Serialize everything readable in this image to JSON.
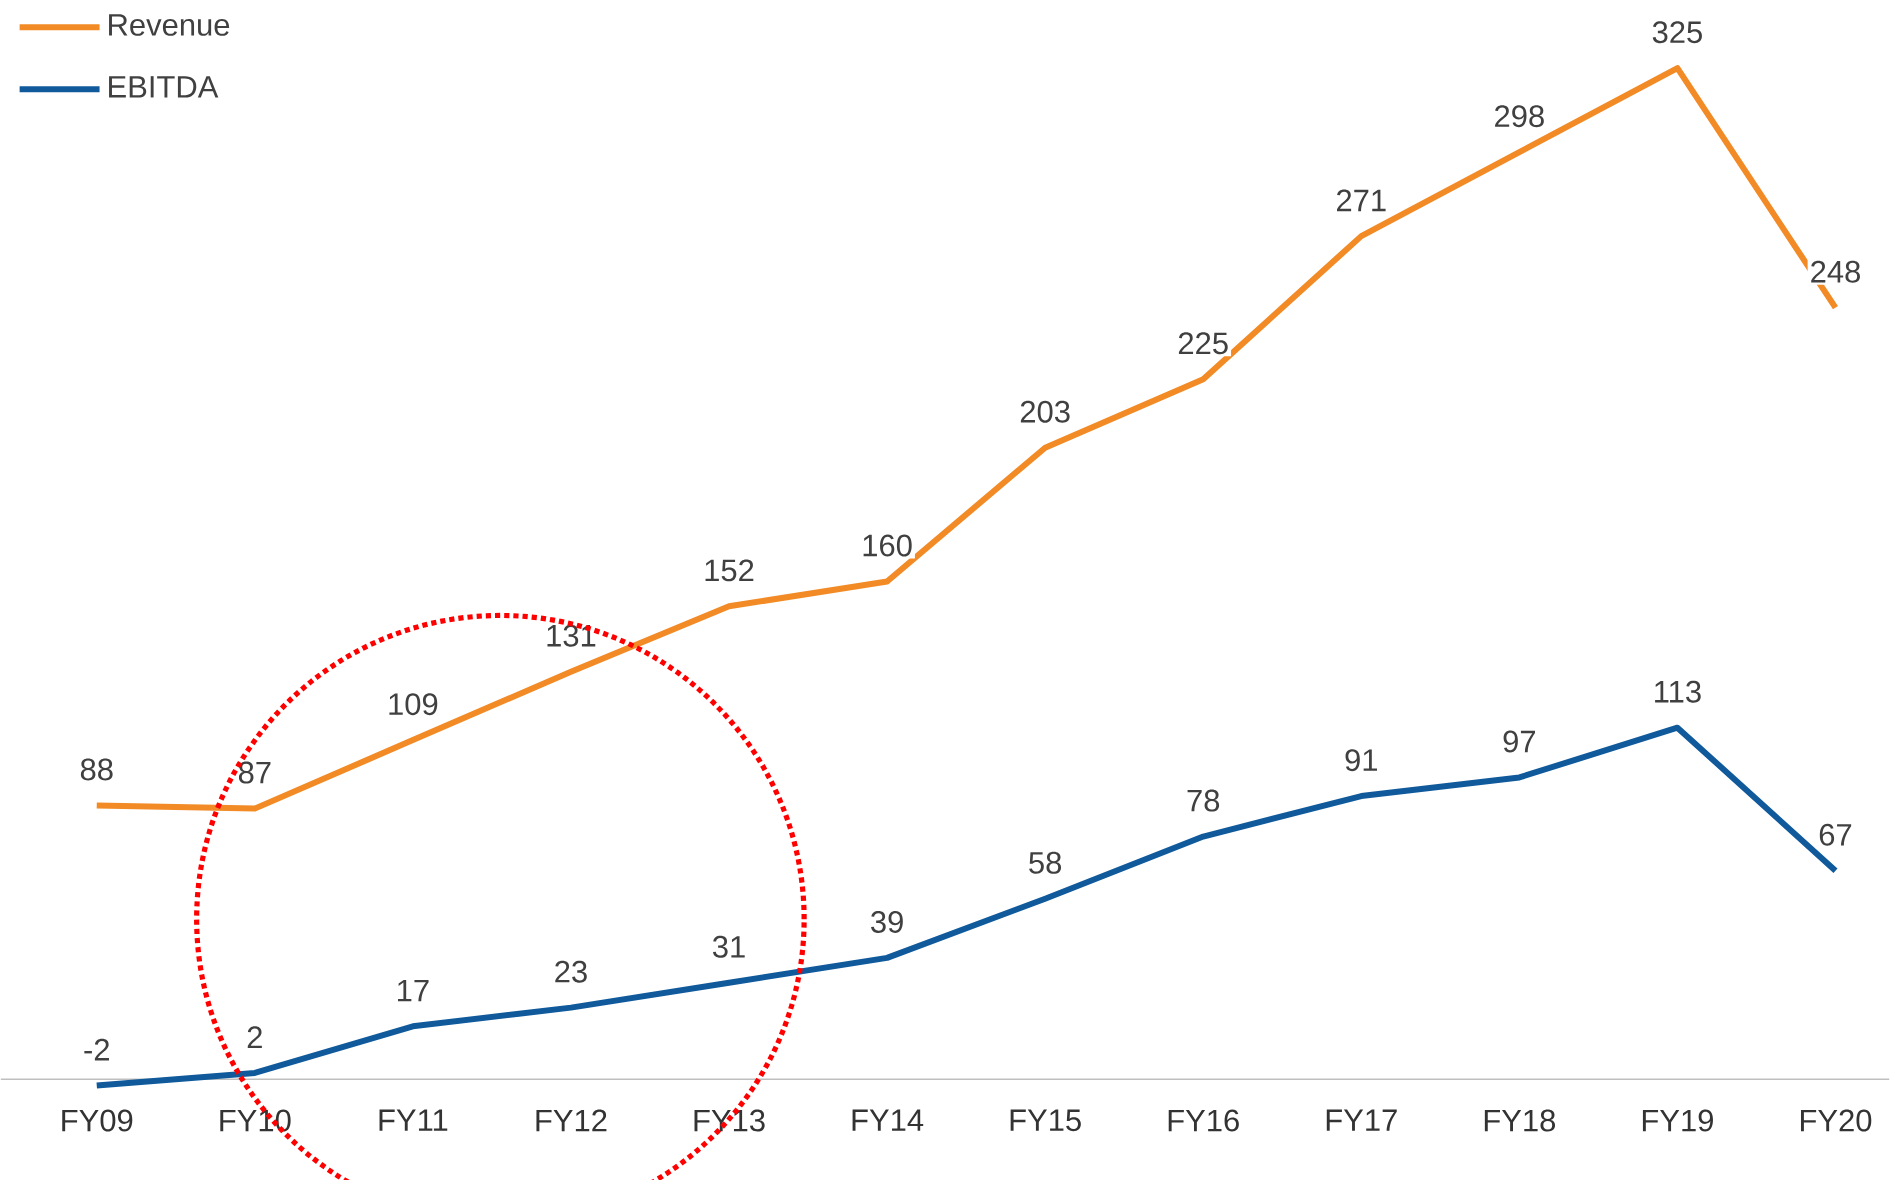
{
  "chart_data": {
    "type": "line",
    "categories": [
      "FY09",
      "FY10",
      "FY11",
      "FY12",
      "FY13",
      "FY14",
      "FY15",
      "FY16",
      "FY17",
      "FY18",
      "FY19",
      "FY20"
    ],
    "series": [
      {
        "name": "Revenue",
        "color": "#f28a25",
        "values": [
          88,
          87,
          109,
          131,
          152,
          160,
          203,
          225,
          271,
          298,
          325,
          248
        ]
      },
      {
        "name": "EBITDA",
        "color": "#105a9c",
        "values": [
          -2,
          2,
          17,
          23,
          31,
          39,
          58,
          78,
          91,
          97,
          113,
          67
        ]
      }
    ],
    "data_labels": true,
    "legend": "top left",
    "marker": "none",
    "line_style": "solid"
  }
}
